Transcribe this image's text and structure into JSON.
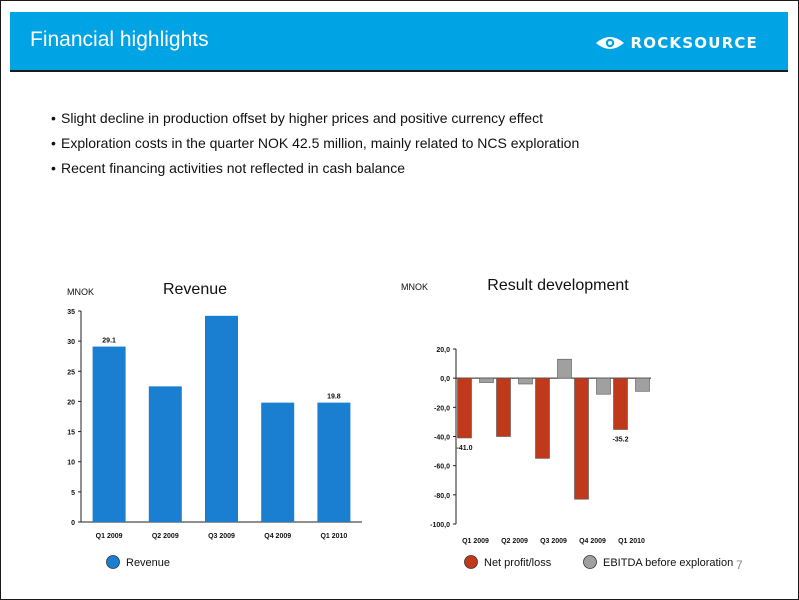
{
  "header": {
    "title": "Financial highlights",
    "logo_text": "ROCKSOURCE",
    "bg_color": "#00a3e4"
  },
  "bullets": [
    "Slight decline in production offset by higher prices and positive currency effect",
    "Exploration costs in the quarter NOK 42.5 million, mainly related to NCS exploration",
    "Recent financing activities not reflected in cash balance"
  ],
  "page_number": "7",
  "chart_data": [
    {
      "type": "bar",
      "title": "Revenue",
      "ylabel": "MNOK",
      "categories": [
        "Q1 2009",
        "Q2 2009",
        "Q3 2009",
        "Q4 2009",
        "Q1 2010"
      ],
      "series": [
        {
          "name": "Revenue",
          "color": "#1a7fd0",
          "values": [
            29.1,
            22.5,
            34.2,
            19.8,
            19.8
          ]
        }
      ],
      "data_labels": [
        {
          "category_index": 0,
          "series_index": 0,
          "text": "29.1"
        },
        {
          "category_index": 4,
          "series_index": 0,
          "text": "19.8"
        }
      ],
      "yticks": [
        0,
        5,
        10,
        15,
        20,
        25,
        30,
        35
      ],
      "ytick_labels": [
        "0",
        "5",
        "10",
        "15",
        "20",
        "25",
        "30",
        "35"
      ],
      "ylim": [
        0,
        35
      ],
      "grid": false,
      "legend": "bottom"
    },
    {
      "type": "bar",
      "title": "Result development",
      "ylabel": "MNOK",
      "categories": [
        "Q1 2009",
        "Q2 2009",
        "Q3 2009",
        "Q4 2009",
        "Q1 2010"
      ],
      "series": [
        {
          "name": "Net profit/loss",
          "color": "#c0391b",
          "values": [
            -41.0,
            -40.0,
            -55.0,
            -83.0,
            -35.2
          ]
        },
        {
          "name": "EBITDA before exploration",
          "color": "#a0a0a0",
          "values": [
            -3.0,
            -4.0,
            13.0,
            -11.0,
            -9.0
          ]
        }
      ],
      "data_labels": [
        {
          "category_index": 0,
          "series_index": 0,
          "text": "-41.0"
        },
        {
          "category_index": 4,
          "series_index": 0,
          "text": "-35.2"
        }
      ],
      "yticks": [
        -100,
        -80,
        -60,
        -40,
        -20,
        0,
        20
      ],
      "ytick_labels": [
        "-100,0",
        "-80,0",
        "-60,0",
        "-40,0",
        "-20,0",
        "0,0",
        "20,0"
      ],
      "ylim": [
        -100,
        20
      ],
      "grid": false,
      "legend": "bottom"
    }
  ]
}
